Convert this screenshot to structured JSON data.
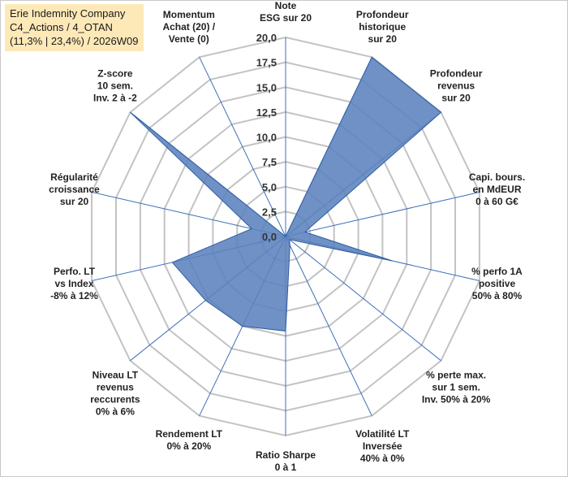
{
  "title_box": {
    "line1": "Erie Indemnity Company",
    "line2": "C4_Actions / 4_OTAN",
    "line3": "(11,3% | 23,4%) / 2026W09"
  },
  "colors": {
    "fill": "#5b82bd",
    "stroke": "#2e5ea3",
    "grid": "#c3c3c3",
    "spoke": "#3e6fb8",
    "title_bg": "#fde9b8"
  },
  "chart_data": {
    "type": "radar",
    "rmin": 0,
    "rmax": 20,
    "ticks": [
      "0,0",
      "2,5",
      "5,0",
      "7,5",
      "10,0",
      "12,5",
      "15,0",
      "17,5",
      "20,0"
    ],
    "axes": [
      {
        "lines": [
          "Note",
          "ESG sur 20"
        ],
        "value": 0
      },
      {
        "lines": [
          "Profondeur",
          "historique",
          "sur 20"
        ],
        "value": 20
      },
      {
        "lines": [
          "Profondeur",
          "revenus",
          "sur 20"
        ],
        "value": 20
      },
      {
        "lines": [
          "Capi. bours.",
          "en MdEUR",
          "0 à 60 G€"
        ],
        "value": 2
      },
      {
        "lines": [
          "% perfo 1A",
          "positive",
          "50% à 80%"
        ],
        "value": 11
      },
      {
        "lines": [
          "% perte max.",
          "sur 1 sem.",
          "Inv. 50% à 20%"
        ],
        "value": 0.5
      },
      {
        "lines": [
          "Volatilité LT",
          "Inversée",
          "40% à 0%"
        ],
        "value": 1
      },
      {
        "lines": [
          "Ratio Sharpe",
          "0 à 1"
        ],
        "value": 9.5
      },
      {
        "lines": [
          "Rendement LT",
          "0% à 20%"
        ],
        "value": 10
      },
      {
        "lines": [
          "Niveau LT",
          "revenus",
          "reccurents",
          "0% à 6%"
        ],
        "value": 10.3
      },
      {
        "lines": [
          "Perfo. LT",
          "vs Index",
          "-8% à 12%"
        ],
        "value": 11.7
      },
      {
        "lines": [
          "Régularité",
          "croissance",
          "sur 20"
        ],
        "value": 3.5
      },
      {
        "lines": [
          "Z-score",
          "10 sem.",
          "Inv. 2 à -2"
        ],
        "value": 20
      },
      {
        "lines": [
          "Momentum",
          "Achat (20) /",
          "Vente (0)"
        ],
        "value": 0
      }
    ]
  }
}
